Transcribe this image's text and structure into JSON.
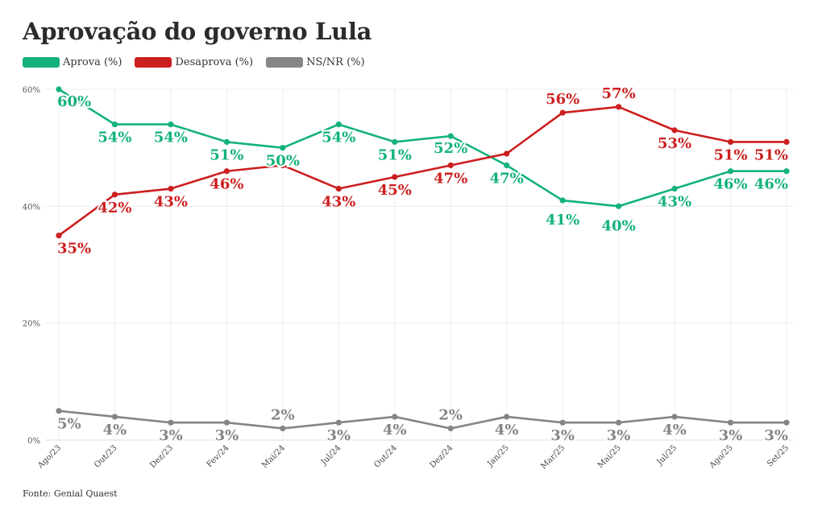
{
  "title": "Aprovação do governo Lula",
  "source": "Fonte: Genial Quaest",
  "chart_data": {
    "type": "line",
    "x": [
      "Ago/23",
      "Out/23",
      "Dez/23",
      "Fev/24",
      "Mai/24",
      "Jul/24",
      "Out/24",
      "Dez/24",
      "Jan/25",
      "Mar/25",
      "Mai/25",
      "Jul/25",
      "Ago/25",
      "Set/25"
    ],
    "ylim": [
      0,
      60
    ],
    "yticks": [
      0,
      20,
      40,
      60
    ],
    "ytick_labels": [
      "0%",
      "20%",
      "40%",
      "60%"
    ],
    "grid": true,
    "legend_position": "top-left",
    "series": [
      {
        "name": "Aprova (%)",
        "color": "#13b27a",
        "values": [
          60,
          54,
          54,
          51,
          50,
          54,
          51,
          52,
          47,
          41,
          40,
          43,
          46,
          46
        ],
        "labels": [
          "60%",
          "54%",
          "54%",
          "51%",
          "50%",
          "54%",
          "51%",
          "52%",
          "47%",
          "41%",
          "40%",
          "43%",
          "46%",
          "46%"
        ]
      },
      {
        "name": "Desaprova (%)",
        "color": "#cc1f1f",
        "values": [
          35,
          42,
          43,
          46,
          47,
          43,
          45,
          47,
          49,
          56,
          57,
          53,
          51,
          51
        ],
        "labels": [
          "35%",
          "42%",
          "43%",
          "46%",
          "",
          "43%",
          "45%",
          "47%",
          "",
          "56%",
          "57%",
          "53%",
          "51%",
          "51%"
        ]
      },
      {
        "name": "NS/NR (%)",
        "color": "#858585",
        "values": [
          5,
          4,
          3,
          3,
          2,
          3,
          4,
          2,
          4,
          3,
          3,
          4,
          3,
          3
        ],
        "labels": [
          "5%",
          "4%",
          "3%",
          "3%",
          "2%",
          "3%",
          "4%",
          "2%",
          "4%",
          "3%",
          "3%",
          "4%",
          "3%",
          "3%"
        ]
      }
    ]
  }
}
